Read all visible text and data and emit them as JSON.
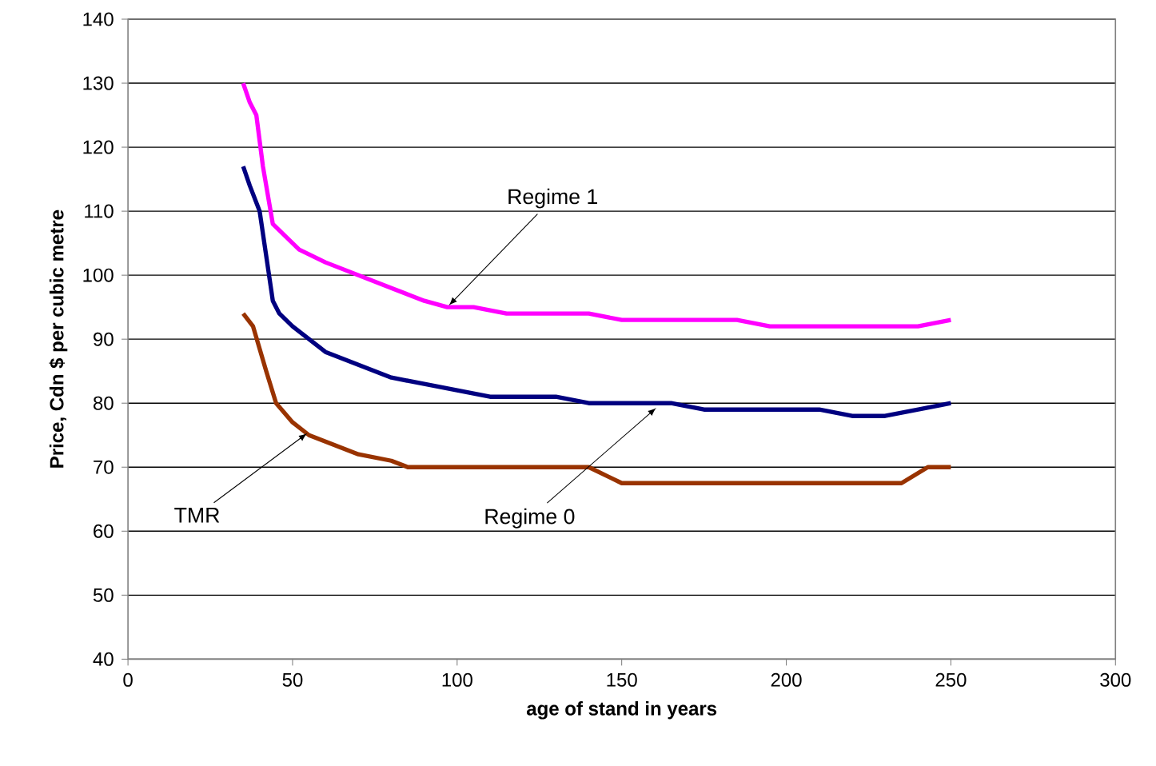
{
  "chart_data": {
    "type": "line",
    "xlabel": "age of stand in years",
    "ylabel": "Price, Cdn $ per cubic metre",
    "xlim": [
      0,
      300
    ],
    "ylim": [
      40,
      140
    ],
    "xticks": [
      0,
      50,
      100,
      150,
      200,
      250,
      300
    ],
    "yticks": [
      40,
      50,
      60,
      70,
      80,
      90,
      100,
      110,
      120,
      130,
      140
    ],
    "grid": "y",
    "marker": "none",
    "line_style": "solid",
    "series": [
      {
        "color": "#ff00ff",
        "x": [
          35,
          37,
          39,
          41,
          44,
          48,
          52,
          56,
          60,
          65,
          70,
          75,
          80,
          85,
          90,
          97,
          105,
          115,
          140,
          150,
          185,
          195,
          240,
          250
        ],
        "values": [
          130,
          127,
          125,
          117,
          108,
          106,
          104,
          103,
          102,
          101,
          100,
          99,
          98,
          97,
          96,
          95,
          95,
          94,
          94,
          93,
          93,
          92,
          92,
          93
        ]
      },
      {
        "color": "#000080",
        "x": [
          35,
          37,
          40,
          44,
          46,
          50,
          55,
          60,
          70,
          80,
          90,
          100,
          110,
          130,
          140,
          165,
          175,
          210,
          220,
          230,
          240,
          250
        ],
        "values": [
          117,
          114,
          110,
          96,
          94,
          92,
          90,
          88,
          86,
          84,
          83,
          82,
          81,
          81,
          80,
          80,
          79,
          79,
          78,
          78,
          79,
          80
        ]
      },
      {
        "color": "#993300",
        "x": [
          35,
          38,
          42,
          45,
          50,
          55,
          60,
          65,
          70,
          80,
          85,
          140,
          150,
          235,
          243,
          250
        ],
        "values": [
          94,
          92,
          85,
          80,
          77,
          75,
          74,
          73,
          72,
          71,
          70,
          70,
          67.5,
          67.5,
          70,
          70
        ]
      }
    ],
    "annotations": [
      {
        "text": "Regime 1",
        "x": 97,
        "y": 95
      },
      {
        "text": "Regime 0",
        "x": 161,
        "y": 79.5
      },
      {
        "text": "TMR",
        "x": 55,
        "y": 75.5
      }
    ]
  }
}
